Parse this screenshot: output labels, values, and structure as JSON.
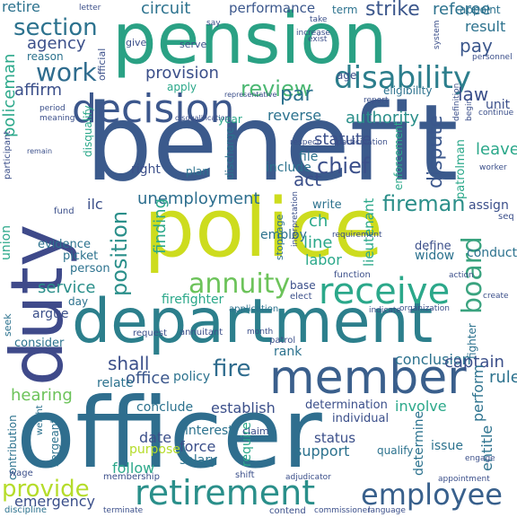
{
  "words": [
    {
      "text": "benefit",
      "color": "#3b5a8c"
    },
    {
      "text": "police",
      "color": "#cddc1e"
    },
    {
      "text": "officer",
      "color": "#2f6e8e"
    },
    {
      "text": "department",
      "color": "#2c7f8c"
    },
    {
      "text": "pension",
      "color": "#2aa184"
    },
    {
      "text": "duty",
      "color": "#3f4a8a"
    },
    {
      "text": "member",
      "color": "#3a5f8c"
    },
    {
      "text": "decision",
      "color": "#3c578c"
    },
    {
      "text": "disability",
      "color": "#2c7e8c"
    },
    {
      "text": "retirement",
      "color": "#2a8f8a"
    },
    {
      "text": "receive",
      "color": "#2ba88a"
    },
    {
      "text": "employee",
      "color": "#38608c"
    },
    {
      "text": "annuity",
      "color": "#6cc35a"
    },
    {
      "text": "board",
      "color": "#3aa37f"
    },
    {
      "text": "work",
      "color": "#2f6c8e"
    },
    {
      "text": "review",
      "color": "#4cb873"
    },
    {
      "text": "provide",
      "color": "#b5dc2a"
    },
    {
      "text": "fire",
      "color": "#2f6c8e"
    },
    {
      "text": "section",
      "color": "#2c728e"
    },
    {
      "text": "fireman",
      "color": "#2c8f8a"
    },
    {
      "text": "position",
      "color": "#2a8f8a"
    },
    {
      "text": "strike",
      "color": "#3c578c"
    },
    {
      "text": "chief",
      "color": "#3b4f8a"
    },
    {
      "text": "unemployment",
      "color": "#2c6e8e"
    },
    {
      "text": "hearing",
      "color": "#6cc35a"
    },
    {
      "text": "dispute",
      "color": "#3b578c"
    },
    {
      "text": "law",
      "color": "#3b4f8a"
    },
    {
      "text": "agency",
      "color": "#3b4f8a"
    },
    {
      "text": "pay",
      "color": "#3b578c"
    },
    {
      "text": "policeman",
      "color": "#2ba88a"
    },
    {
      "text": "act",
      "color": "#3b4f8a"
    },
    {
      "text": "office",
      "color": "#3b578c"
    },
    {
      "text": "shall",
      "color": "#3b4f8a"
    },
    {
      "text": "par",
      "color": "#2c728e"
    },
    {
      "text": "affirm",
      "color": "#3b4f8a"
    },
    {
      "text": "provision",
      "color": "#3b4f8a"
    },
    {
      "text": "circuit",
      "color": "#2c728e"
    },
    {
      "text": "performance",
      "color": "#3b578c"
    },
    {
      "text": "referee",
      "color": "#2c728e"
    },
    {
      "text": "service",
      "color": "#2a8f8a"
    },
    {
      "text": "finding",
      "color": "#2ba88a"
    },
    {
      "text": "firefighter",
      "color": "#2ba88a"
    },
    {
      "text": "reverse",
      "color": "#2c728e"
    },
    {
      "text": "statute",
      "color": "#3b4f8a"
    },
    {
      "text": "authority",
      "color": "#2a8f8a"
    },
    {
      "text": "leave",
      "color": "#2ba88a"
    },
    {
      "text": "retire",
      "color": "#2c728e"
    },
    {
      "text": "result",
      "color": "#2c728e"
    },
    {
      "text": "lieutenant",
      "color": "#2ba88a"
    },
    {
      "text": "ch",
      "color": "#2ba88a"
    },
    {
      "text": "line",
      "color": "#2ba88a"
    },
    {
      "text": "labor",
      "color": "#2ba88a"
    },
    {
      "text": "conclusion",
      "color": "#2c728e"
    },
    {
      "text": "conclude",
      "color": "#2c728e"
    },
    {
      "text": "establish",
      "color": "#3b4f8a"
    },
    {
      "text": "determination",
      "color": "#3b4f8a"
    },
    {
      "text": "involve",
      "color": "#2ba88a"
    },
    {
      "text": "date",
      "color": "#3b4f8a"
    },
    {
      "text": "force",
      "color": "#3b4f8a"
    },
    {
      "text": "salary",
      "color": "#2c728e"
    },
    {
      "text": "status",
      "color": "#3b4f8a"
    },
    {
      "text": "support",
      "color": "#2c728e"
    },
    {
      "text": "issue",
      "color": "#2c728e"
    },
    {
      "text": "captain",
      "color": "#3b4f8a"
    },
    {
      "text": "rule",
      "color": "#2c728e"
    },
    {
      "text": "emergency",
      "color": "#3b4f8a"
    },
    {
      "text": "follow",
      "color": "#2ba88a"
    },
    {
      "text": "purpose",
      "color": "#b5dc2a"
    },
    {
      "text": "interest",
      "color": "#2c728e"
    },
    {
      "text": "require",
      "color": "#2ba88a"
    },
    {
      "text": "perform",
      "color": "#2c728e"
    },
    {
      "text": "entitle",
      "color": "#2c728e"
    },
    {
      "text": "determine",
      "color": "#2c728e"
    },
    {
      "text": "policy",
      "color": "#2c728e"
    },
    {
      "text": "relate",
      "color": "#2c728e"
    },
    {
      "text": "rank",
      "color": "#2c728e"
    },
    {
      "text": "include",
      "color": "#2c728e"
    },
    {
      "text": "file",
      "color": "#2c728e"
    },
    {
      "text": "right",
      "color": "#3b4f8a"
    },
    {
      "text": "evidence",
      "color": "#2c728e"
    },
    {
      "text": "picket",
      "color": "#2c728e"
    },
    {
      "text": "person",
      "color": "#2c728e"
    },
    {
      "text": "union",
      "color": "#2ba88a"
    },
    {
      "text": "argue",
      "color": "#3b4f8a"
    },
    {
      "text": "consider",
      "color": "#2c728e"
    },
    {
      "text": "day",
      "color": "#2c728e"
    },
    {
      "text": "ilc",
      "color": "#3b4f8a"
    },
    {
      "text": "define",
      "color": "#3b4f8a"
    },
    {
      "text": "widow",
      "color": "#2c728e"
    },
    {
      "text": "conduct",
      "color": "#2c728e"
    },
    {
      "text": "write",
      "color": "#2c728e"
    },
    {
      "text": "employ",
      "color": "#2c728e"
    },
    {
      "text": "enforcement",
      "color": "#2ba88a"
    },
    {
      "text": "patrolman",
      "color": "#2ba88a"
    },
    {
      "text": "unit",
      "color": "#3b4f8a"
    },
    {
      "text": "assign",
      "color": "#3b4f8a"
    },
    {
      "text": "appoint",
      "color": "#2c728e"
    },
    {
      "text": "term",
      "color": "#2c728e"
    },
    {
      "text": "reason",
      "color": "#2c728e"
    },
    {
      "text": "contribution",
      "color": "#2c728e"
    },
    {
      "text": "sergeant",
      "color": "#2c728e"
    },
    {
      "text": "fighter",
      "color": "#2c728e"
    },
    {
      "text": "base",
      "color": "#3b4f8a"
    },
    {
      "text": "discharge",
      "color": "#2c728e"
    },
    {
      "text": "plan",
      "color": "#2c728e"
    },
    {
      "text": "qualify",
      "color": "#2c728e"
    },
    {
      "text": "year",
      "color": "#2ba88a"
    },
    {
      "text": "apply",
      "color": "#2ba88a"
    },
    {
      "text": "eligibility",
      "color": "#2c728e"
    },
    {
      "text": "age",
      "color": "#3b4f8a"
    },
    {
      "text": "individual",
      "color": "#3b4f8a"
    },
    {
      "text": "participant",
      "color": "#3b4f8a"
    },
    {
      "text": "disqualify",
      "color": "#2ba88a"
    },
    {
      "text": "give",
      "color": "#3b4f8a"
    },
    {
      "text": "serve",
      "color": "#3b4f8a"
    },
    {
      "text": "official",
      "color": "#3b4f8a"
    },
    {
      "text": "seek",
      "color": "#2c728e"
    },
    {
      "text": "stoppage",
      "color": "#2c728e"
    },
    {
      "text": "claim",
      "color": "#3b4f8a"
    },
    {
      "text": "annuitant",
      "color": "#3b4f8a"
    },
    {
      "text": "request",
      "color": "#3b4f8a"
    },
    {
      "text": "weight",
      "color": "#2c728e"
    },
    {
      "text": "wage",
      "color": "#3b4f8a"
    },
    {
      "text": "discipline",
      "color": "#2c728e"
    },
    {
      "text": "membership",
      "color": "#3b4f8a"
    },
    {
      "text": "shift",
      "color": "#3b4f8a"
    },
    {
      "text": "terminate",
      "color": "#3b4f8a"
    },
    {
      "text": "contend",
      "color": "#3b4f8a"
    },
    {
      "text": "commissioner",
      "color": "#3b4f8a"
    },
    {
      "text": "language",
      "color": "#3b4f8a"
    },
    {
      "text": "appointment",
      "color": "#3b4f8a"
    },
    {
      "text": "adjudicator",
      "color": "#3b4f8a"
    },
    {
      "text": "respect",
      "color": "#3b4f8a"
    },
    {
      "text": "participation",
      "color": "#3b4f8a"
    },
    {
      "text": "application",
      "color": "#2c728e"
    },
    {
      "text": "month",
      "color": "#3b4f8a"
    },
    {
      "text": "organization",
      "color": "#3b4f8a"
    },
    {
      "text": "indicate",
      "color": "#3b4f8a"
    },
    {
      "text": "function",
      "color": "#3b4f8a"
    },
    {
      "text": "elect",
      "color": "#3b4f8a"
    },
    {
      "text": "patrol",
      "color": "#3b4f8a"
    },
    {
      "text": "interpretation",
      "color": "#3b4f8a"
    },
    {
      "text": "requirement",
      "color": "#3b4f8a"
    },
    {
      "text": "fund",
      "color": "#3b4f8a"
    },
    {
      "text": "period",
      "color": "#3b4f8a"
    },
    {
      "text": "meaning",
      "color": "#3b4f8a"
    },
    {
      "text": "representative",
      "color": "#3b4f8a"
    },
    {
      "text": "disqualification",
      "color": "#3b4f8a"
    },
    {
      "text": "increase",
      "color": "#3b4f8a"
    },
    {
      "text": "system",
      "color": "#3b4f8a"
    },
    {
      "text": "personnel",
      "color": "#3b4f8a"
    },
    {
      "text": "take",
      "color": "#3b4f8a"
    },
    {
      "text": "letter",
      "color": "#3b4f8a"
    },
    {
      "text": "say",
      "color": "#3b4f8a"
    },
    {
      "text": "exist",
      "color": "#3b4f8a"
    },
    {
      "text": "report",
      "color": "#3b4f8a"
    },
    {
      "text": "worker",
      "color": "#3b4f8a"
    },
    {
      "text": "remain",
      "color": "#3b4f8a"
    },
    {
      "text": "action",
      "color": "#3b4f8a"
    },
    {
      "text": "engage",
      "color": "#3b4f8a"
    },
    {
      "text": "create",
      "color": "#3b4f8a"
    },
    {
      "text": "seq",
      "color": "#3b4f8a"
    },
    {
      "text": "continue",
      "color": "#3b4f8a"
    },
    {
      "text": "definition",
      "color": "#3b4f8a"
    },
    {
      "text": "begin",
      "color": "#3b4f8a"
    }
  ]
}
